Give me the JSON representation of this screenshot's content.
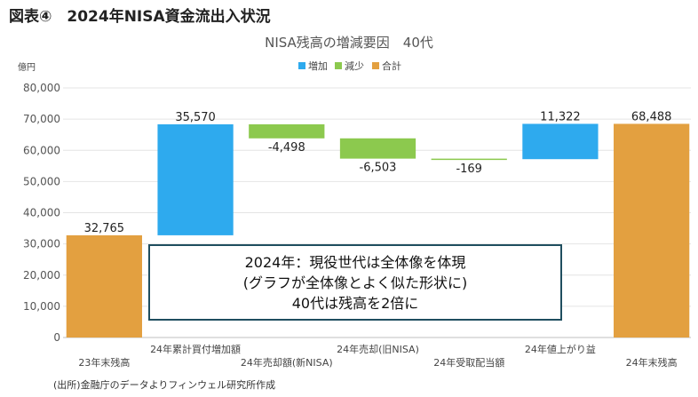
{
  "heading": "図表④　2024年NISA資金流出入状況",
  "source": "(出所)金融庁のデータよりフィンウェル研究所作成",
  "annotation": {
    "line1": "2024年：現役世代は全体像を体現",
    "line2": "(グラフが全体像とよく似た形状に)",
    "line3": "40代は残高を2倍に"
  },
  "chart_data": {
    "type": "bar",
    "subtype": "waterfall",
    "title": "NISA残高の増減要因　40代",
    "unit_label": "億円",
    "legend": [
      {
        "key": "increase",
        "label": "増加",
        "color": "#2eaaee"
      },
      {
        "key": "decrease",
        "label": "減少",
        "color": "#8cc94e"
      },
      {
        "key": "total",
        "label": "合計",
        "color": "#e3a040"
      }
    ],
    "legend_position": "top-center",
    "ylim": [
      0,
      80000
    ],
    "yticks": [
      0,
      10000,
      20000,
      30000,
      40000,
      50000,
      60000,
      70000,
      80000
    ],
    "ytick_labels": [
      "0",
      "10,000",
      "20,000",
      "30,000",
      "40,000",
      "50,000",
      "60,000",
      "70,000",
      "80,000"
    ],
    "grid": true,
    "categories": [
      "23年末残高",
      "24年累計買付増加額",
      "24年売却額(新NISA)",
      "24年売却(旧NISA)",
      "24年受取配当額",
      "24年値上がり益",
      "24年末残高"
    ],
    "bars": [
      {
        "kind": "total",
        "start": 0,
        "end": 32765,
        "label": "32,765"
      },
      {
        "kind": "increase",
        "start": 32765,
        "end": 68335,
        "label": "35,570"
      },
      {
        "kind": "decrease",
        "start": 68335,
        "end": 63837,
        "label": "-4,498"
      },
      {
        "kind": "decrease",
        "start": 63837,
        "end": 57334,
        "label": "-6,503"
      },
      {
        "kind": "decrease",
        "start": 57334,
        "end": 57165,
        "label": "-169"
      },
      {
        "kind": "increase",
        "start": 57165,
        "end": 68487,
        "label": "11,322"
      },
      {
        "kind": "total",
        "start": 0,
        "end": 68488,
        "label": "68,488"
      }
    ]
  }
}
